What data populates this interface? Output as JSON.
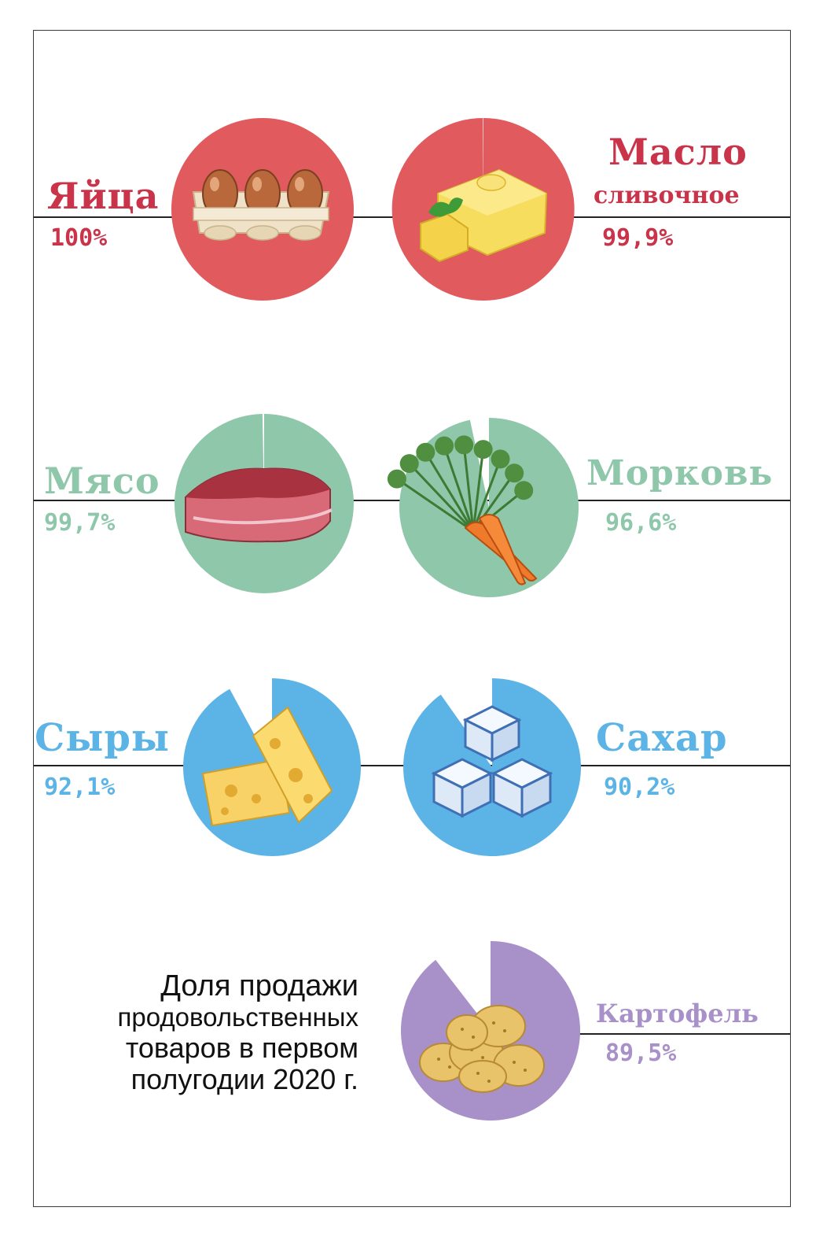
{
  "title_lines": [
    "Доля продажи",
    "продовольственных",
    "товаров в первом",
    "полугодии 2020 г."
  ],
  "colors": {
    "red": "#e05a5e",
    "red_text": "#c9344a",
    "green": "#8fc7ab",
    "blue": "#5cb4e6",
    "purple": "#a890c8",
    "rule": "#222222",
    "frame": "#3a3a3a"
  },
  "chart_data": {
    "type": "pie",
    "unit": "%",
    "items": [
      {
        "name": "Яйца",
        "value": 100,
        "value_label": "100%",
        "color": "#e05a5e",
        "icon": "eggs-icon"
      },
      {
        "name": "Масло",
        "name_sub": "сливочное",
        "value": 99.9,
        "value_label": "99,9%",
        "color": "#e05a5e",
        "icon": "butter-icon"
      },
      {
        "name": "Мясо",
        "value": 99.7,
        "value_label": "99,7%",
        "color": "#8fc7ab",
        "icon": "meat-icon"
      },
      {
        "name": "Морковь",
        "value": 96.6,
        "value_label": "96,6%",
        "color": "#8fc7ab",
        "icon": "carrot-icon"
      },
      {
        "name": "Сыры",
        "value": 92.1,
        "value_label": "92,1%",
        "color": "#5cb4e6",
        "icon": "cheese-icon"
      },
      {
        "name": "Сахар",
        "value": 90.2,
        "value_label": "90,2%",
        "color": "#5cb4e6",
        "icon": "sugar-cubes-icon"
      },
      {
        "name": "Картофель",
        "value": 89.5,
        "value_label": "89,5%",
        "color": "#a890c8",
        "icon": "potato-icon"
      }
    ]
  }
}
